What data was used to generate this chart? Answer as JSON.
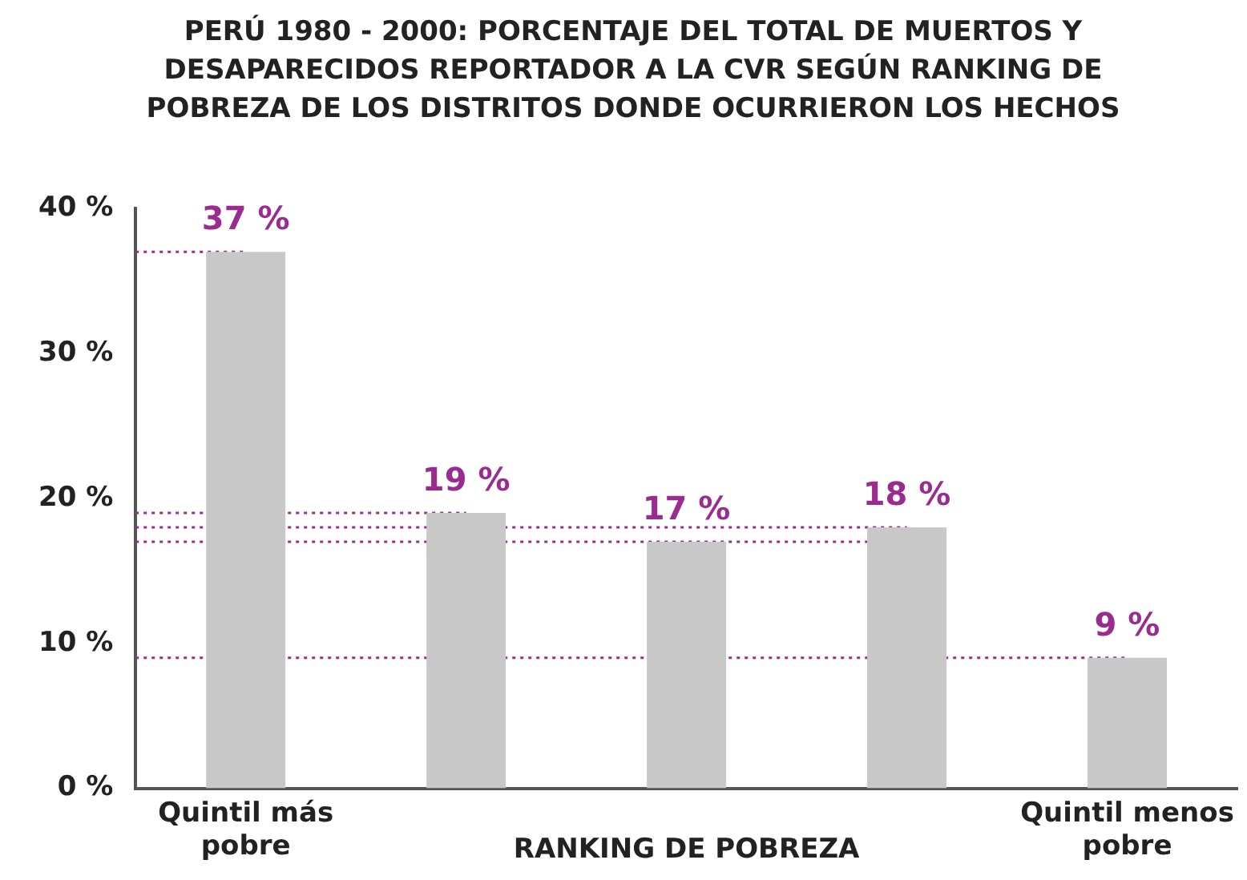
{
  "chart_data": {
    "type": "bar",
    "title": "PERÚ 1980 - 2000: PORCENTAJE DEL TOTAL DE MUERTOS Y DESAPARECIDOS REPORTADOR A LA CVR SEGÚN RANKING DE POBREZA DE LOS DISTRITOS DONDE OCURRIERON LOS HECHOS",
    "xlabel": "RANKING DE POBREZA",
    "categories": [
      "Quintil más pobre",
      null,
      null,
      null,
      "Quintil menos pobre"
    ],
    "values": [
      37,
      19,
      17,
      18,
      9
    ],
    "value_labels": [
      "37 %",
      "19 %",
      "17 %",
      "18 %",
      "9 %"
    ],
    "color": "#c8c8c8",
    "ylim": [
      0,
      40
    ],
    "yticks": [
      {
        "value": 0,
        "label": "0 %"
      },
      {
        "value": 10,
        "label": "10 %"
      },
      {
        "value": 20,
        "label": "20 %"
      },
      {
        "value": 30,
        "label": "30 %"
      },
      {
        "value": 40,
        "label": "40 %"
      }
    ],
    "ref_lines": [
      {
        "axis": "y",
        "value": 37,
        "color": "#9b2c8f",
        "line_style": "dotted"
      },
      {
        "axis": "y",
        "value": 19,
        "color": "#9b2c8f",
        "line_style": "dotted"
      },
      {
        "axis": "y",
        "value": 17,
        "color": "#9b2c8f",
        "line_style": "dotted"
      },
      {
        "axis": "y",
        "value": 18,
        "color": "#9b2c8f",
        "line_style": "dotted"
      },
      {
        "axis": "y",
        "value": 9,
        "color": "#9b2c8f",
        "line_style": "dotted"
      }
    ],
    "grid": false,
    "legend": false
  }
}
